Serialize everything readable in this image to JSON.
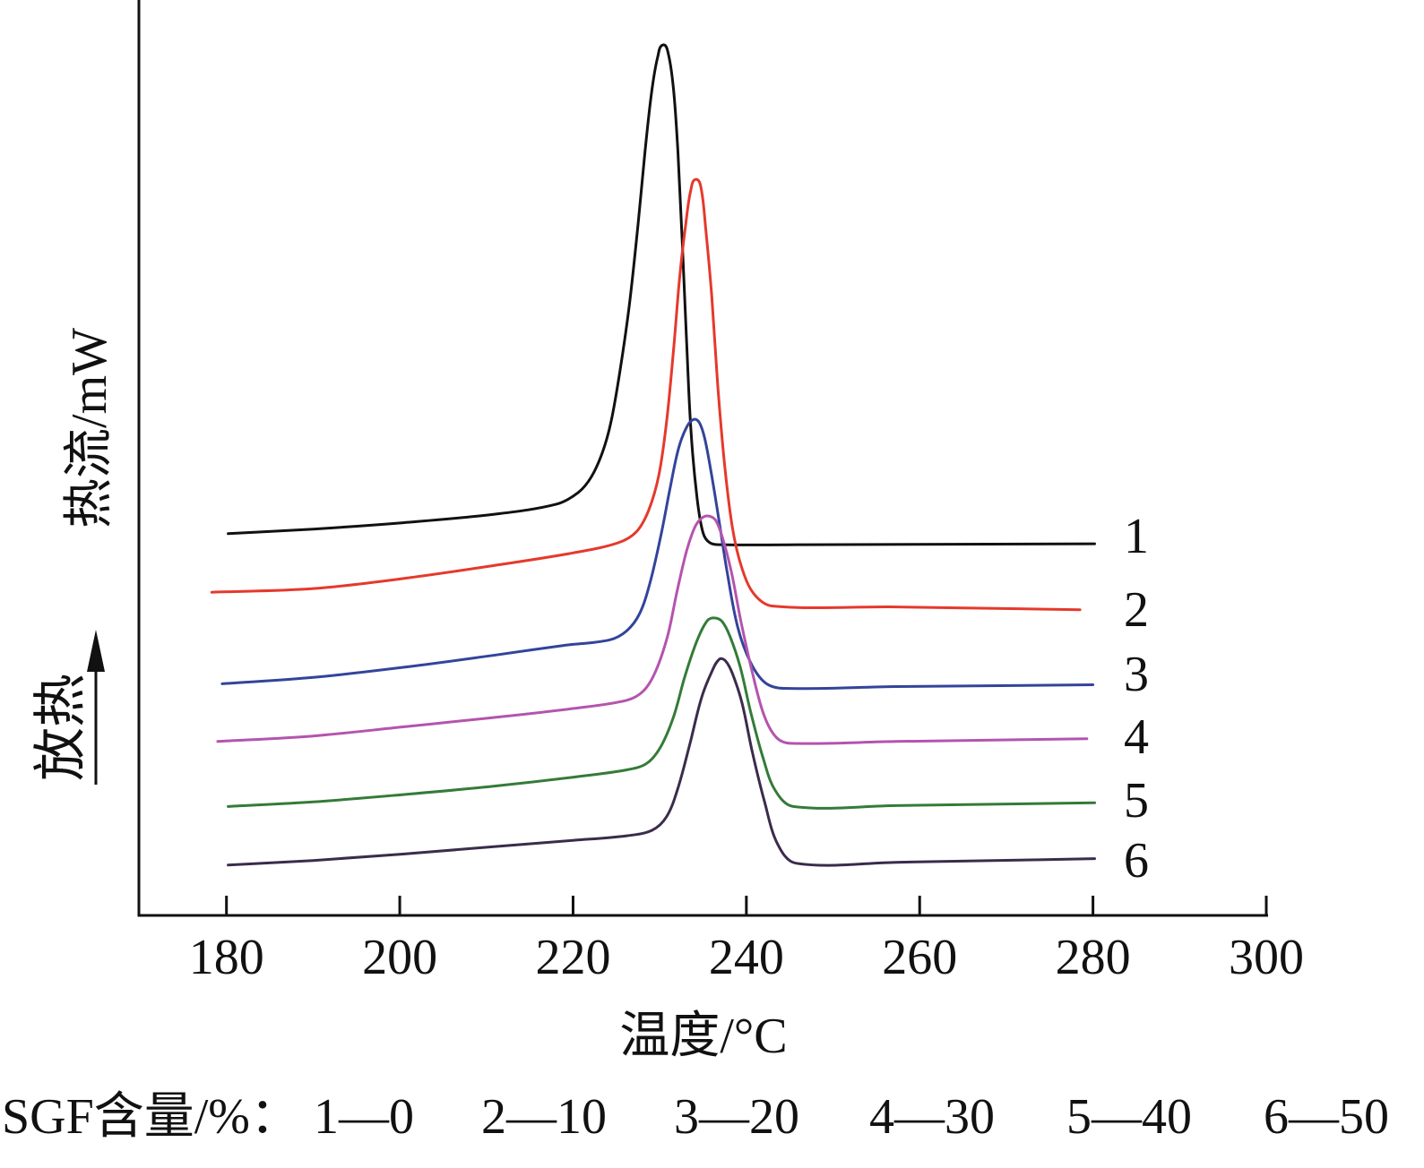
{
  "chart_data": {
    "type": "line",
    "xlabel": "温度/°C",
    "ylabel": "热流/mW",
    "exo_label": "放热",
    "xlim": [
      170,
      300
    ],
    "ylim": [
      0,
      100
    ],
    "x_ticks": [
      180,
      200,
      220,
      240,
      260,
      280,
      300
    ],
    "x_tick_labels": [
      "180",
      "200",
      "220",
      "240",
      "260",
      "280",
      "300"
    ],
    "grid": false,
    "series": [
      {
        "name": "1",
        "color": "#111111",
        "x": [
          180.2,
          190.0,
          200.4,
          210.7,
          218.0,
          220.6,
          222.1,
          223.4,
          224.4,
          225.4,
          226.5,
          227.5,
          228.3,
          229.1,
          229.8,
          230.4,
          231.0,
          231.6,
          232.1,
          232.6,
          233.1,
          233.6,
          234.3,
          235.0,
          235.8,
          237.1,
          246.9,
          280.2
        ],
        "y": [
          41.7,
          42.2,
          42.9,
          43.8,
          44.9,
          46.2,
          47.9,
          50.6,
          54.0,
          59.4,
          66.7,
          75.5,
          83.4,
          90.2,
          93.9,
          95.1,
          94.1,
          90.2,
          83.4,
          73.6,
          62.8,
          53.0,
          45.7,
          41.8,
          40.7,
          40.5,
          40.5,
          40.6
        ]
      },
      {
        "name": "2",
        "color": "#e5392c",
        "x": [
          178.3,
          190.0,
          200.4,
          210.7,
          220.0,
          225.2,
          227.3,
          228.7,
          229.9,
          230.8,
          231.6,
          232.3,
          233.0,
          233.6,
          234.2,
          234.8,
          235.3,
          236.0,
          236.7,
          237.5,
          238.4,
          239.5,
          240.9,
          243.0,
          257.3,
          278.5
        ],
        "y": [
          35.3,
          35.7,
          36.8,
          38.2,
          39.6,
          40.7,
          41.9,
          44.2,
          48.1,
          54.0,
          61.8,
          69.7,
          75.5,
          79.3,
          80.4,
          79.3,
          75.1,
          67.7,
          57.9,
          49.1,
          42.3,
          37.9,
          35.1,
          33.8,
          33.7,
          33.4
        ]
      },
      {
        "name": "3",
        "color": "#33449a",
        "x": [
          179.5,
          190.0,
          200.4,
          210.7,
          219.0,
          224.2,
          226.2,
          227.7,
          228.9,
          230.2,
          231.2,
          232.2,
          233.2,
          234.0,
          234.6,
          235.2,
          235.9,
          236.8,
          237.8,
          239.0,
          240.5,
          242.2,
          244.3,
          257.3,
          280.0
        ],
        "y": [
          25.3,
          26.0,
          27.1,
          28.4,
          29.5,
          30.1,
          31.1,
          33.0,
          36.4,
          41.8,
          46.7,
          51.1,
          53.5,
          54.2,
          53.8,
          52.1,
          48.6,
          43.4,
          37.4,
          31.5,
          27.6,
          25.4,
          24.8,
          25.0,
          25.2
        ]
      },
      {
        "name": "4",
        "color": "#b454ae",
        "x": [
          179.0,
          190.0,
          200.4,
          210.7,
          220.0,
          226.2,
          228.1,
          229.5,
          230.9,
          232.0,
          233.1,
          234.1,
          235.0,
          235.8,
          236.5,
          237.3,
          238.3,
          239.4,
          240.8,
          242.1,
          243.5,
          245.1,
          257.3,
          279.3
        ],
        "y": [
          19.0,
          19.6,
          20.6,
          21.6,
          22.6,
          23.5,
          24.5,
          26.6,
          30.5,
          35.4,
          39.8,
          42.5,
          43.5,
          43.6,
          43.1,
          41.1,
          37.4,
          32.0,
          26.1,
          21.7,
          19.4,
          18.8,
          19.0,
          19.3
        ]
      },
      {
        "name": "5",
        "color": "#347b38",
        "x": [
          180.2,
          190.0,
          200.4,
          210.7,
          220.0,
          226.2,
          228.5,
          230.1,
          231.6,
          232.9,
          234.3,
          235.5,
          236.3,
          237.2,
          238.1,
          239.3,
          240.5,
          241.9,
          243.3,
          245.4,
          257.3,
          280.2
        ],
        "y": [
          11.9,
          12.4,
          13.2,
          14.1,
          15.1,
          15.9,
          16.6,
          18.4,
          21.7,
          26.1,
          30.0,
          32.2,
          32.5,
          32.1,
          30.5,
          27.1,
          22.2,
          17.3,
          13.7,
          11.9,
          12.0,
          12.3
        ]
      },
      {
        "name": "6",
        "color": "#3b2b4c",
        "x": [
          180.2,
          190.0,
          200.4,
          210.7,
          220.0,
          226.2,
          229.1,
          230.8,
          232.1,
          233.5,
          234.8,
          236.0,
          236.9,
          237.6,
          238.4,
          239.5,
          240.7,
          242.1,
          243.6,
          245.7,
          257.3,
          280.2
        ],
        "y": [
          5.5,
          6.0,
          6.7,
          7.5,
          8.2,
          8.7,
          9.3,
          10.8,
          13.9,
          18.8,
          23.7,
          26.6,
          28.0,
          27.8,
          26.4,
          23.2,
          17.8,
          12.4,
          7.8,
          5.7,
          5.8,
          6.2
        ]
      }
    ],
    "legend": {
      "placement": "bottom",
      "title": "SGF含量/%：",
      "entries": [
        "1—0",
        "2—10",
        "3—20",
        "4—30",
        "5—40",
        "6—50"
      ]
    }
  }
}
